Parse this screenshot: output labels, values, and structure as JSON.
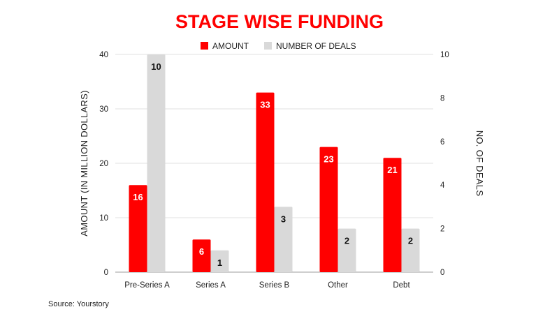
{
  "chart_data": {
    "type": "bar",
    "title": "STAGE WISE FUNDING",
    "categories": [
      "Pre-Series A",
      "Series A",
      "Series B",
      "Other",
      "Debt"
    ],
    "series": [
      {
        "name": "AMOUNT",
        "axis": "left",
        "color": "#ff0000",
        "label_color": "#ffffff",
        "values": [
          16,
          6,
          33,
          23,
          21
        ]
      },
      {
        "name": "NUMBER OF DEALS",
        "axis": "right",
        "color": "#d9d9d9",
        "label_color": "#111111",
        "values": [
          10,
          1,
          3,
          2,
          2
        ]
      }
    ],
    "ylabel": "AMOUNT (IN MILLION DOLLARS)",
    "y2label": "NO. OF DEALS",
    "ylim": [
      0,
      40
    ],
    "y2lim": [
      0,
      10
    ],
    "yticks": [
      "0",
      "10",
      "20",
      "30",
      "40"
    ],
    "y2ticks": [
      "0",
      "2",
      "4",
      "6",
      "8",
      "10"
    ],
    "grid": true,
    "legend": "top-center",
    "title_color": "#ff0000",
    "grid_color": "#e0e0e0"
  },
  "source": "Source: Yourstory"
}
